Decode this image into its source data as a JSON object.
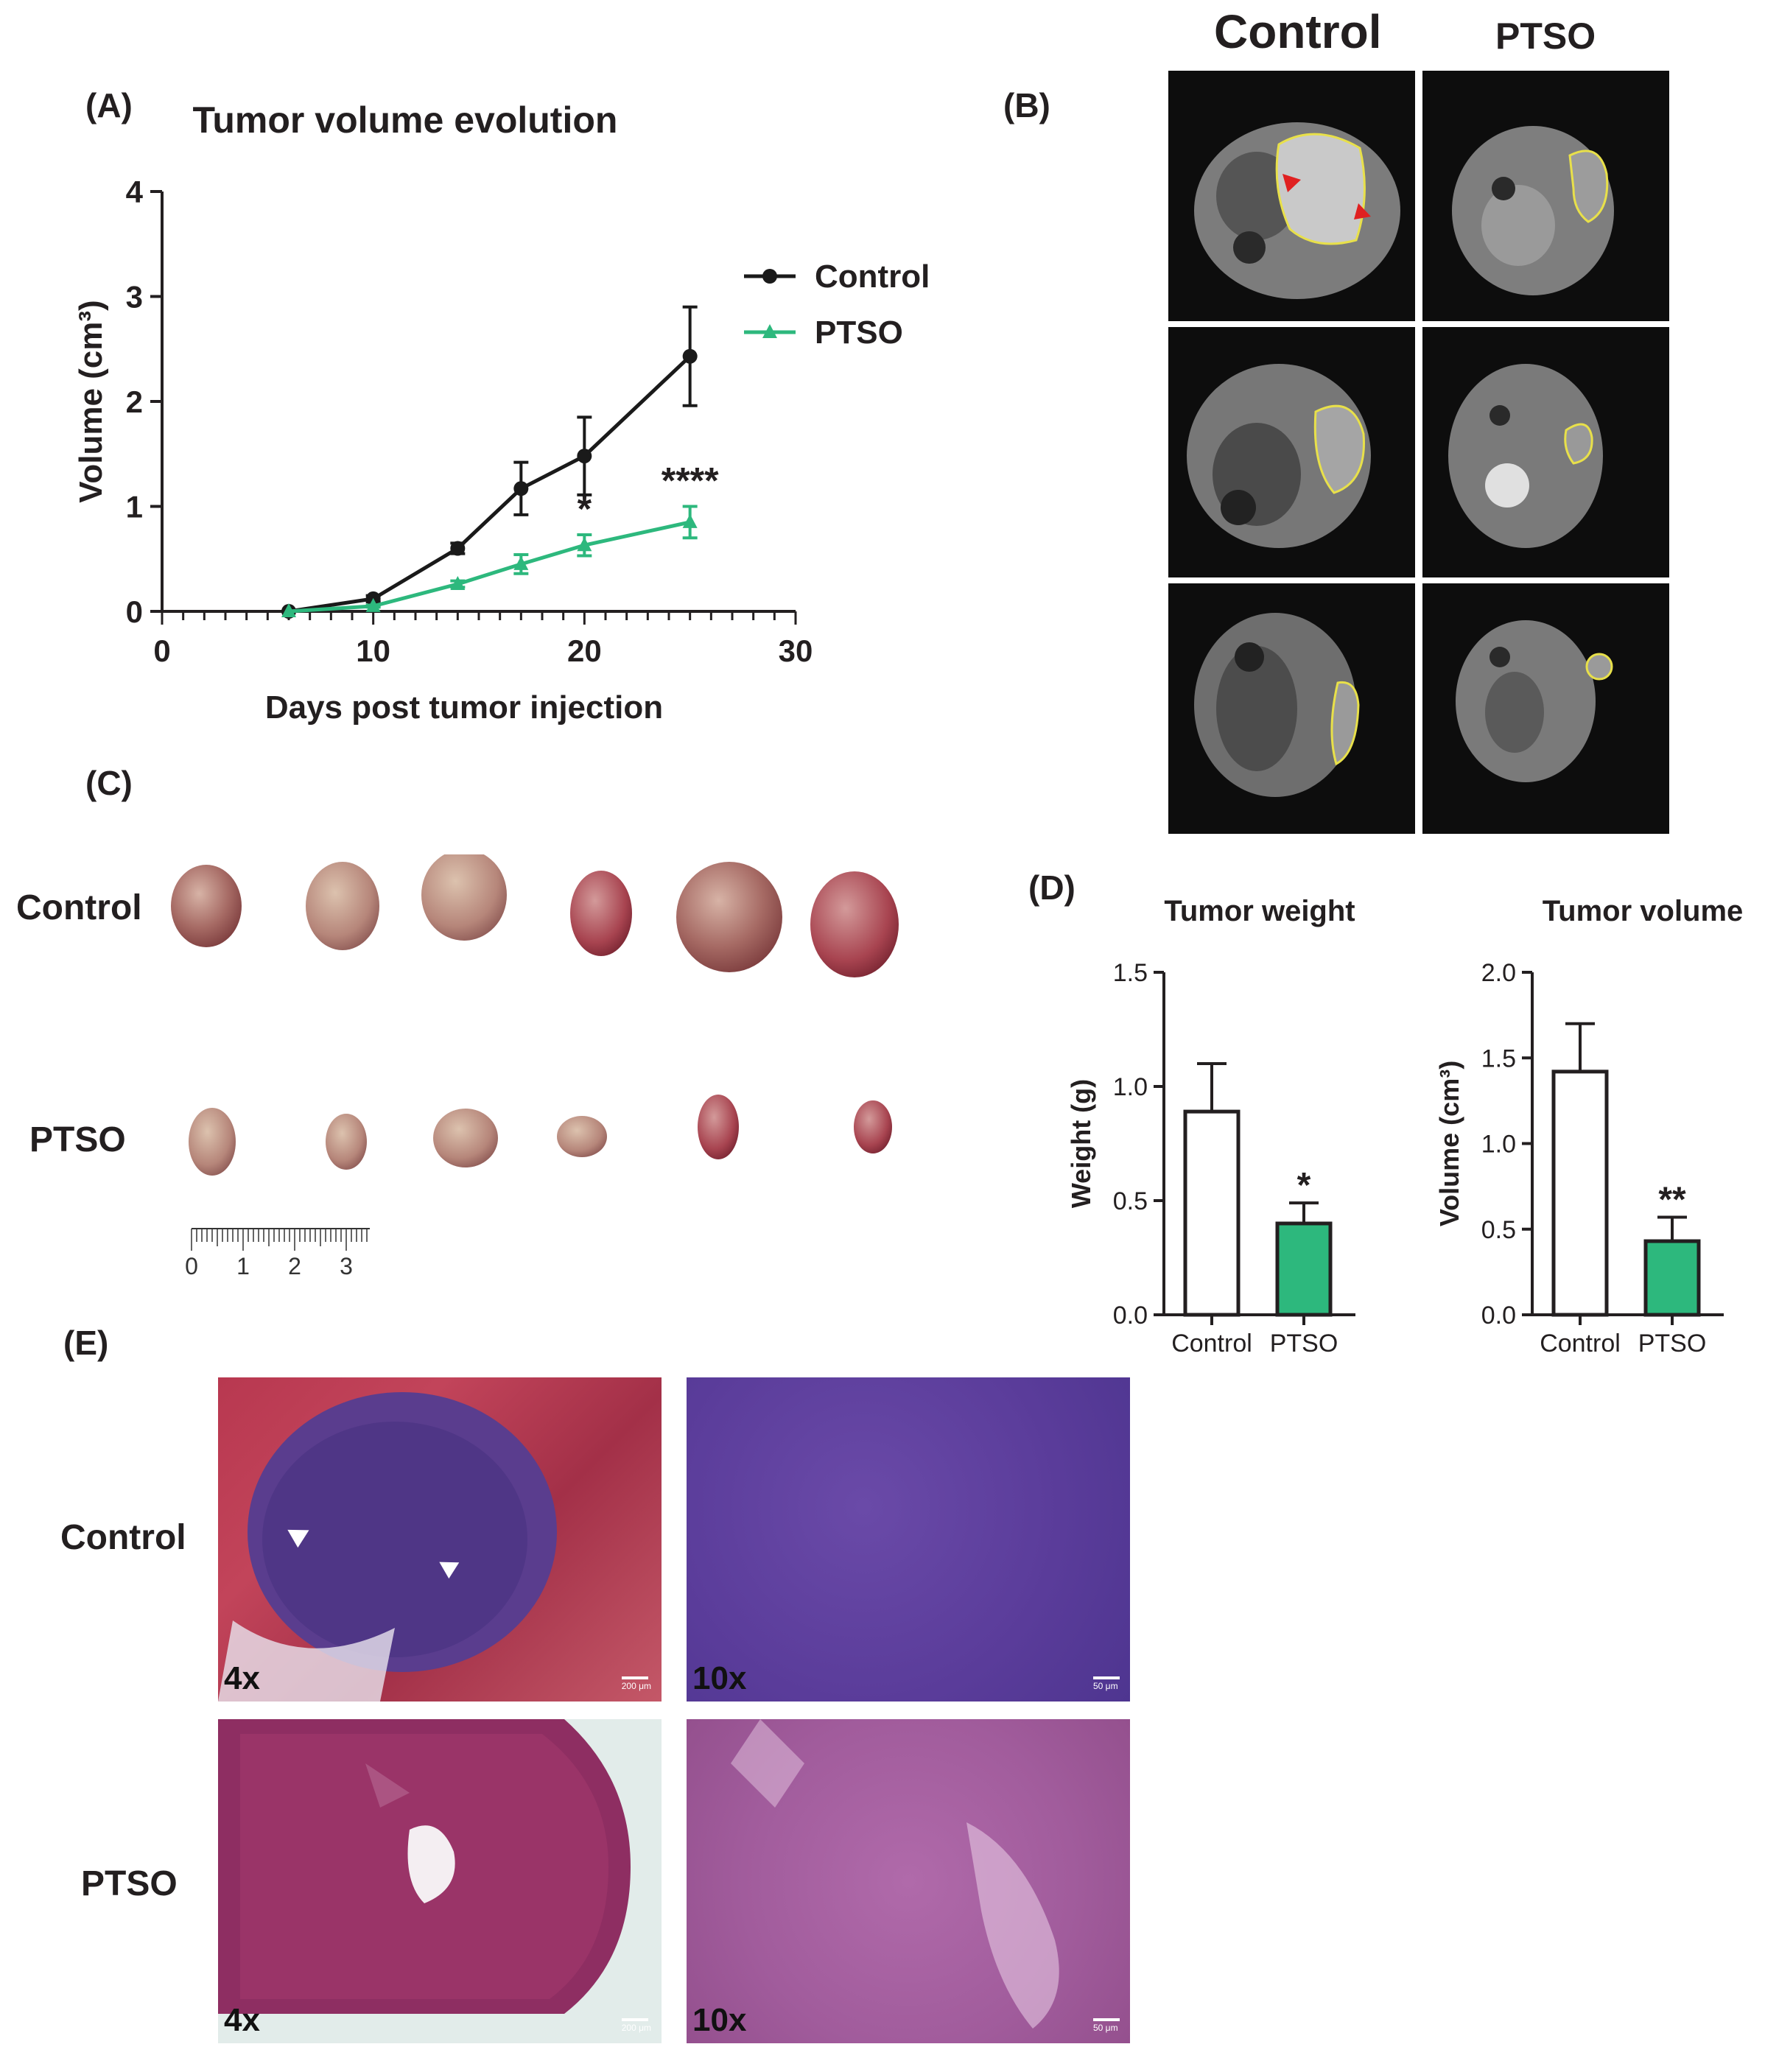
{
  "panels": {
    "a": "(A)",
    "b": "(B)",
    "c": "(C)",
    "d": "(D)",
    "e": "(E)"
  },
  "panel_b": {
    "col_control": "Control",
    "col_ptso": "PTSO"
  },
  "panel_c": {
    "row_control": "Control",
    "row_ptso": "PTSO",
    "ruler_ticks": [
      "0",
      "1",
      "2",
      "3"
    ]
  },
  "panel_e": {
    "row_control": "Control",
    "row_ptso": "PTSO",
    "mag_4x": "4x",
    "mag_10x": "10x",
    "scale_200": "200 μm",
    "scale_50": "50 μm"
  },
  "colors": {
    "control": "#1a1a1a",
    "ptso": "#2db87d",
    "roi": "#e8e04a",
    "arrow_red": "#e02020"
  },
  "chart_data": [
    {
      "id": "A",
      "type": "line",
      "title": "Tumor volume evolution",
      "xlabel": "Days post tumor injection",
      "ylabel": "Volume (cm³)",
      "xlim": [
        0,
        30
      ],
      "ylim": [
        0,
        4
      ],
      "xticks": [
        0,
        10,
        20,
        30
      ],
      "yticks": [
        0,
        1,
        2,
        3,
        4
      ],
      "legend_position": "top-right",
      "series": [
        {
          "name": "Control",
          "marker": "circle",
          "x": [
            6,
            10,
            14,
            17,
            20,
            25
          ],
          "y": [
            0.0,
            0.12,
            0.6,
            1.17,
            1.48,
            2.43
          ],
          "err": [
            0.0,
            0.03,
            0.05,
            0.25,
            0.37,
            0.47
          ]
        },
        {
          "name": "PTSO",
          "marker": "triangle",
          "x": [
            6,
            10,
            14,
            17,
            20,
            25
          ],
          "y": [
            0.0,
            0.05,
            0.26,
            0.45,
            0.63,
            0.85
          ],
          "err": [
            0.0,
            0.01,
            0.03,
            0.09,
            0.1,
            0.15
          ]
        }
      ],
      "annotations": [
        {
          "x": 20,
          "text": "*"
        },
        {
          "x": 25,
          "text": "****"
        }
      ]
    },
    {
      "id": "D1",
      "type": "bar",
      "title": "Tumor weight",
      "ylabel": "Weight (g)",
      "categories": [
        "Control",
        "PTSO"
      ],
      "values": [
        0.89,
        0.4
      ],
      "err": [
        0.21,
        0.09
      ],
      "ylim": [
        0,
        1.5
      ],
      "yticks": [
        "0.0",
        "0.5",
        "1.0",
        "1.5"
      ],
      "annotations": [
        "",
        "*"
      ]
    },
    {
      "id": "D2",
      "type": "bar",
      "title": "Tumor volume",
      "ylabel": "Volume (cm³)",
      "categories": [
        "Control",
        "PTSO"
      ],
      "values": [
        1.42,
        0.43
      ],
      "err": [
        0.28,
        0.14
      ],
      "ylim": [
        0,
        2.0
      ],
      "yticks": [
        "0.0",
        "0.5",
        "1.0",
        "1.5",
        "2.0"
      ],
      "annotations": [
        "",
        "**"
      ]
    }
  ]
}
